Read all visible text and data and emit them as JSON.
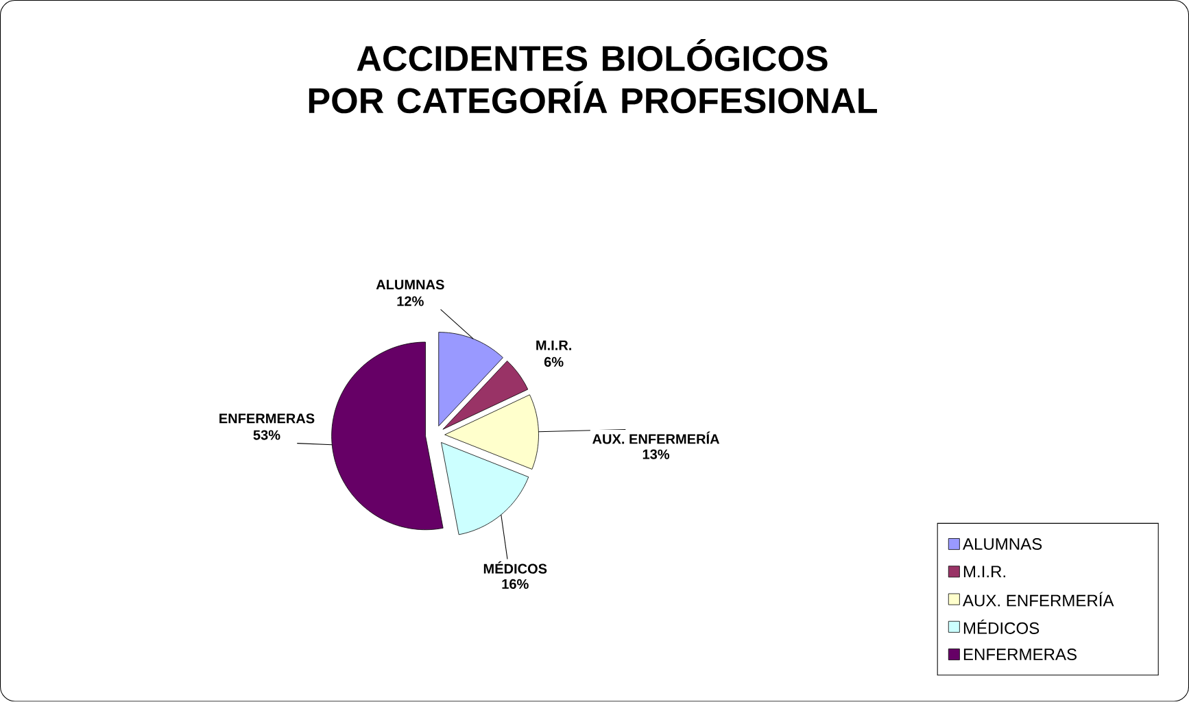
{
  "chart_data": {
    "type": "pie",
    "title": "ACCIDENTES BIOLÓGICOS\nPOR CATEGORÍA PROFESIONAL",
    "categories": [
      "ALUMNAS",
      "M.I.R.",
      "AUX. ENFERMERÍA",
      "MÉDICOS",
      "ENFERMERAS"
    ],
    "values": [
      12,
      6,
      13,
      16,
      53
    ],
    "colors": [
      "#9999ff",
      "#993366",
      "#ffffcc",
      "#ccffff",
      "#660066"
    ],
    "value_labels": [
      "12%",
      "6%",
      "13%",
      "16%",
      "53%"
    ],
    "legend": "bottom right"
  }
}
